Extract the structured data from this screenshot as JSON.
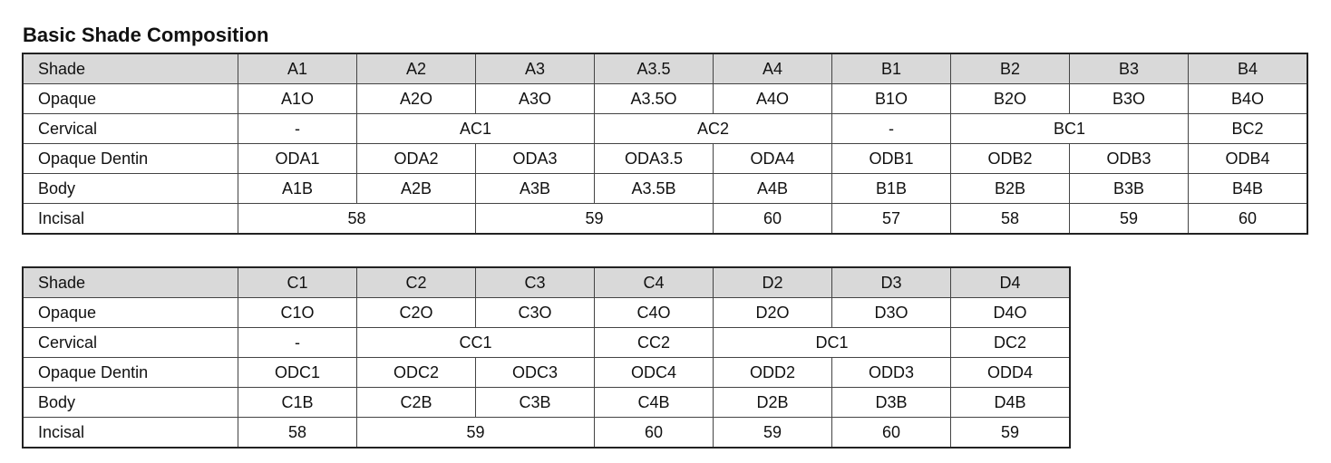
{
  "title": "Basic Shade Composition",
  "tables": [
    {
      "rows": [
        [
          "Shade",
          "A1",
          "A2",
          "A3",
          "A3.5",
          "A4",
          "B1",
          "B2",
          "B3",
          "B4"
        ],
        [
          "Opaque",
          "A1O",
          "A2O",
          "A3O",
          "A3.5O",
          "A4O",
          "B1O",
          "B2O",
          "B3O",
          "B4O"
        ],
        [
          "Cervical",
          "-",
          "AC1",
          "AC2",
          "-",
          "BC1",
          "BC2"
        ],
        [
          "Opaque Dentin",
          "ODA1",
          "ODA2",
          "ODA3",
          "ODA3.5",
          "ODA4",
          "ODB1",
          "ODB2",
          "ODB3",
          "ODB4"
        ],
        [
          "Body",
          "A1B",
          "A2B",
          "A3B",
          "A3.5B",
          "A4B",
          "B1B",
          "B2B",
          "B3B",
          "B4B"
        ],
        [
          "Incisal",
          58,
          59,
          60,
          57,
          58,
          59,
          60
        ]
      ]
    },
    {
      "rows": [
        [
          "Shade",
          "C1",
          "C2",
          "C3",
          "C4",
          "D2",
          "D3",
          "D4"
        ],
        [
          "Opaque",
          "C1O",
          "C2O",
          "C3O",
          "C4O",
          "D2O",
          "D3O",
          "D4O"
        ],
        [
          "Cervical",
          "-",
          "CC1",
          "CC2",
          "DC1",
          "DC2"
        ],
        [
          "Opaque Dentin",
          "ODC1",
          "ODC2",
          "ODC3",
          "ODC4",
          "ODD2",
          "ODD3",
          "ODD4"
        ],
        [
          "Body",
          "C1B",
          "C2B",
          "C3B",
          "C4B",
          "D2B",
          "D3B",
          "D4B"
        ],
        [
          "Incisal",
          58,
          59,
          60,
          59,
          60,
          59
        ]
      ]
    }
  ]
}
